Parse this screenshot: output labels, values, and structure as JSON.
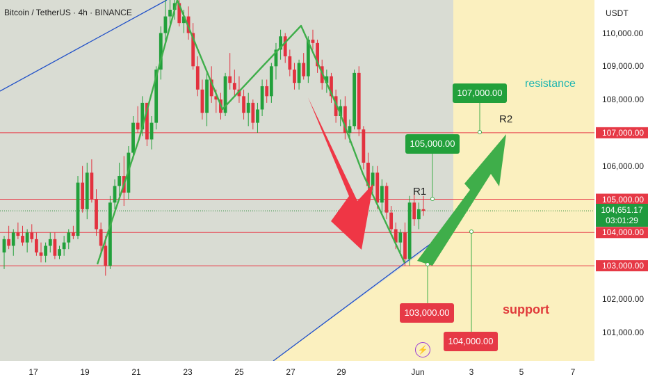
{
  "header": {
    "symbol_title": "Bitcoin / TetherUS · 4h · BINANCE"
  },
  "price_axis": {
    "currency": "USDT",
    "ticks": [
      "110,000.00",
      "109,000.00",
      "108,000.00",
      "107,000.00",
      "106,000.00",
      "105,000.00",
      "104,000.00",
      "103,000.00",
      "102,000.00",
      "101,000.00"
    ],
    "current_price": "104,651.17",
    "countdown": "03:01:29"
  },
  "time_axis": {
    "ticks": [
      "17",
      "19",
      "21",
      "23",
      "25",
      "27",
      "29",
      "Jun",
      "3",
      "5",
      "7"
    ]
  },
  "annotations": {
    "resistance": "resistance",
    "support": "support",
    "r1": "R1",
    "r2": "R2",
    "box_107000": "107,000.00",
    "box_105000": "105,000.00",
    "box_103000": "103,000.00",
    "box_104000": "104,000.00"
  },
  "colors": {
    "chart_bg": "#d9dcd3",
    "projection_bg": "#fbf0bf",
    "up_candle": "#22a03b",
    "down_candle": "#e2323f",
    "level_line": "#e8404c",
    "trend_line": "#2050c8",
    "arrow_down": "#ef3645",
    "arrow_up": "#3fae4a",
    "resistance_text": "#1fb5b0",
    "support_text": "#e03a3a"
  },
  "chart_data": {
    "type": "candlestick",
    "title": "Bitcoin / TetherUS · 4h · BINANCE",
    "symbol": "BTCUSDT",
    "timeframe": "4h",
    "exchange": "BINANCE",
    "ylabel": "USDT",
    "ylim": [
      100500,
      110800
    ],
    "x_labels": [
      "17",
      "19",
      "21",
      "23",
      "25",
      "27",
      "29",
      "Jun",
      "3",
      "5",
      "7"
    ],
    "ohlc": [
      [
        103400,
        103900,
        102900,
        103800
      ],
      [
        103800,
        104200,
        103500,
        103600
      ],
      [
        103600,
        104100,
        103300,
        104000
      ],
      [
        104000,
        104300,
        103800,
        103900
      ],
      [
        103900,
        104200,
        103600,
        103700
      ],
      [
        103700,
        104100,
        103400,
        104000
      ],
      [
        104000,
        104250,
        103700,
        103800
      ],
      [
        103800,
        104000,
        103300,
        103400
      ],
      [
        103400,
        103700,
        103100,
        103300
      ],
      [
        103300,
        103700,
        103100,
        103600
      ],
      [
        103600,
        104000,
        103400,
        103800
      ],
      [
        103800,
        104000,
        103200,
        103300
      ],
      [
        103300,
        103600,
        103200,
        103500
      ],
      [
        103500,
        103900,
        103300,
        103700
      ],
      [
        103700,
        104100,
        103500,
        104000
      ],
      [
        104000,
        104200,
        103800,
        103900
      ],
      [
        103900,
        105700,
        103800,
        105500
      ],
      [
        105500,
        106000,
        104600,
        104700
      ],
      [
        104700,
        106100,
        104400,
        105800
      ],
      [
        105800,
        106200,
        104900,
        105000
      ],
      [
        105000,
        105300,
        103900,
        104100
      ],
      [
        104100,
        104300,
        103400,
        103600
      ],
      [
        103600,
        103900,
        102700,
        103000
      ],
      [
        103000,
        105100,
        102900,
        104900
      ],
      [
        104900,
        105600,
        104700,
        105400
      ],
      [
        105400,
        106100,
        105100,
        105700
      ],
      [
        105700,
        106300,
        104800,
        105200
      ],
      [
        105200,
        106600,
        105000,
        106400
      ],
      [
        106400,
        107500,
        106200,
        107300
      ],
      [
        107300,
        107800,
        107000,
        107100
      ],
      [
        107100,
        108100,
        106900,
        107900
      ],
      [
        107900,
        107900,
        106600,
        106800
      ],
      [
        106800,
        107500,
        106500,
        107300
      ],
      [
        107300,
        109000,
        107100,
        108900
      ],
      [
        108900,
        110200,
        108600,
        110000
      ],
      [
        110000,
        111000,
        109700,
        110500
      ],
      [
        110500,
        111200,
        110200,
        110700
      ],
      [
        110700,
        111000,
        110400,
        110900
      ],
      [
        110900,
        111100,
        110200,
        110300
      ],
      [
        110300,
        110700,
        110000,
        110500
      ],
      [
        110500,
        110800,
        109800,
        110000
      ],
      [
        110000,
        110300,
        108900,
        109000
      ],
      [
        109000,
        109300,
        108100,
        108300
      ],
      [
        108300,
        108600,
        107400,
        107600
      ],
      [
        107600,
        108800,
        107200,
        108600
      ],
      [
        108600,
        109000,
        107900,
        108100
      ],
      [
        108100,
        108300,
        107600,
        108000
      ],
      [
        108000,
        108200,
        107400,
        107600
      ],
      [
        107600,
        108800,
        107500,
        108700
      ],
      [
        108700,
        109400,
        108300,
        108500
      ],
      [
        108500,
        108900,
        108100,
        108300
      ],
      [
        108300,
        108700,
        107900,
        108100
      ],
      [
        108100,
        108300,
        107400,
        107600
      ],
      [
        107600,
        108200,
        107200,
        107900
      ],
      [
        107900,
        108000,
        107100,
        107300
      ],
      [
        107300,
        107900,
        107000,
        107700
      ],
      [
        107700,
        108600,
        107500,
        108400
      ],
      [
        108400,
        108600,
        107900,
        108100
      ],
      [
        108100,
        109100,
        107900,
        109000
      ],
      [
        109000,
        109700,
        108600,
        109500
      ],
      [
        109500,
        110100,
        109200,
        109900
      ],
      [
        109900,
        110000,
        109100,
        109300
      ],
      [
        109300,
        109500,
        108700,
        108900
      ],
      [
        108900,
        109100,
        108300,
        108500
      ],
      [
        108500,
        109200,
        108300,
        109100
      ],
      [
        109100,
        109400,
        108600,
        108700
      ],
      [
        108700,
        109900,
        108500,
        109800
      ],
      [
        109800,
        110100,
        109500,
        109700
      ],
      [
        109700,
        109800,
        108800,
        109000
      ],
      [
        109000,
        109200,
        108300,
        108500
      ],
      [
        108500,
        108900,
        108200,
        108700
      ],
      [
        108700,
        108800,
        107900,
        108100
      ],
      [
        108100,
        108300,
        107300,
        107500
      ],
      [
        107500,
        108000,
        107200,
        107800
      ],
      [
        107800,
        108100,
        106800,
        107000
      ],
      [
        107000,
        107400,
        106700,
        107200
      ],
      [
        107200,
        108900,
        107100,
        108800
      ],
      [
        108800,
        109000,
        106900,
        107100
      ],
      [
        107100,
        107200,
        105900,
        106100
      ],
      [
        106100,
        106400,
        105200,
        105400
      ],
      [
        105400,
        106000,
        105200,
        105800
      ],
      [
        105800,
        106000,
        104700,
        104900
      ],
      [
        104900,
        105600,
        104600,
        105400
      ],
      [
        105400,
        105500,
        104400,
        104600
      ],
      [
        104600,
        104800,
        103900,
        104100
      ],
      [
        104100,
        104300,
        103500,
        103700
      ],
      [
        103700,
        104100,
        103300,
        104000
      ],
      [
        104000,
        104300,
        103000,
        103200
      ],
      [
        103200,
        105100,
        103000,
        104900
      ],
      [
        104900,
        105200,
        104200,
        104400
      ],
      [
        104400,
        104900,
        104100,
        104700
      ],
      [
        104700,
        105100,
        104500,
        104650
      ]
    ],
    "horizontal_levels": [
      107000,
      105000,
      104000,
      103000
    ],
    "labels": {
      "resistance": "resistance",
      "support": "support",
      "R1": "R1",
      "R2": "R2"
    },
    "price_boxes": [
      107000,
      105000,
      103000,
      104000
    ],
    "trend_line": {
      "from": [
        "2025-05-31",
        103000
      ],
      "to": [
        "2025-06-01",
        104200
      ]
    },
    "last_price": 104651.17,
    "countdown": "03:01:29"
  }
}
